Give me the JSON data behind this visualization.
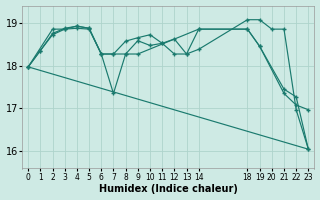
{
  "background_color": "#ceeae4",
  "grid_color": "#aed4cc",
  "line_color": "#1a7a6e",
  "xlabel": "Humidex (Indice chaleur)",
  "xlim": [
    -0.5,
    23.5
  ],
  "ylim": [
    15.6,
    19.4
  ],
  "yticks": [
    16,
    17,
    18,
    19
  ],
  "xtick_positions": [
    0,
    1,
    2,
    3,
    4,
    5,
    6,
    7,
    8,
    9,
    10,
    11,
    12,
    13,
    14,
    18,
    19,
    20,
    21,
    22,
    23
  ],
  "xtick_labels": [
    "0",
    "1",
    "2",
    "3",
    "4",
    "5",
    "6",
    "7",
    "8",
    "9",
    "10",
    "11",
    "12",
    "13",
    "14",
    "18",
    "19",
    "20",
    "21",
    "22",
    "23"
  ],
  "series1": [
    [
      0,
      17.97
    ],
    [
      1,
      18.35
    ],
    [
      2,
      18.72
    ],
    [
      3,
      18.85
    ],
    [
      4,
      18.87
    ],
    [
      5,
      18.85
    ],
    [
      6,
      18.27
    ],
    [
      7,
      17.35
    ],
    [
      8,
      18.27
    ],
    [
      9,
      18.58
    ],
    [
      10,
      18.47
    ],
    [
      11,
      18.52
    ],
    [
      12,
      18.62
    ],
    [
      13,
      18.27
    ],
    [
      14,
      18.38
    ],
    [
      18,
      19.07
    ],
    [
      19,
      19.07
    ],
    [
      20,
      18.85
    ],
    [
      21,
      18.85
    ],
    [
      22,
      16.97
    ],
    [
      23,
      16.05
    ]
  ],
  "series2": [
    [
      0,
      17.97
    ],
    [
      1,
      18.35
    ],
    [
      2,
      18.75
    ],
    [
      3,
      18.87
    ],
    [
      4,
      18.92
    ],
    [
      5,
      18.87
    ],
    [
      6,
      18.27
    ],
    [
      7,
      18.27
    ],
    [
      8,
      18.57
    ],
    [
      9,
      18.65
    ],
    [
      10,
      18.72
    ],
    [
      11,
      18.52
    ],
    [
      12,
      18.27
    ],
    [
      13,
      18.27
    ],
    [
      14,
      18.85
    ],
    [
      18,
      18.85
    ],
    [
      19,
      18.45
    ],
    [
      21,
      17.35
    ],
    [
      22,
      17.08
    ],
    [
      23,
      16.97
    ]
  ],
  "series3": [
    [
      0,
      17.97
    ],
    [
      2,
      18.85
    ],
    [
      3,
      18.85
    ],
    [
      4,
      18.92
    ],
    [
      5,
      18.87
    ],
    [
      6,
      18.27
    ],
    [
      7,
      18.27
    ],
    [
      8,
      18.27
    ],
    [
      9,
      18.27
    ],
    [
      14,
      18.85
    ],
    [
      18,
      18.85
    ],
    [
      19,
      18.45
    ],
    [
      21,
      17.45
    ],
    [
      22,
      17.27
    ],
    [
      23,
      16.05
    ]
  ],
  "series_diagonal": [
    [
      0,
      17.97
    ],
    [
      23,
      16.05
    ]
  ]
}
